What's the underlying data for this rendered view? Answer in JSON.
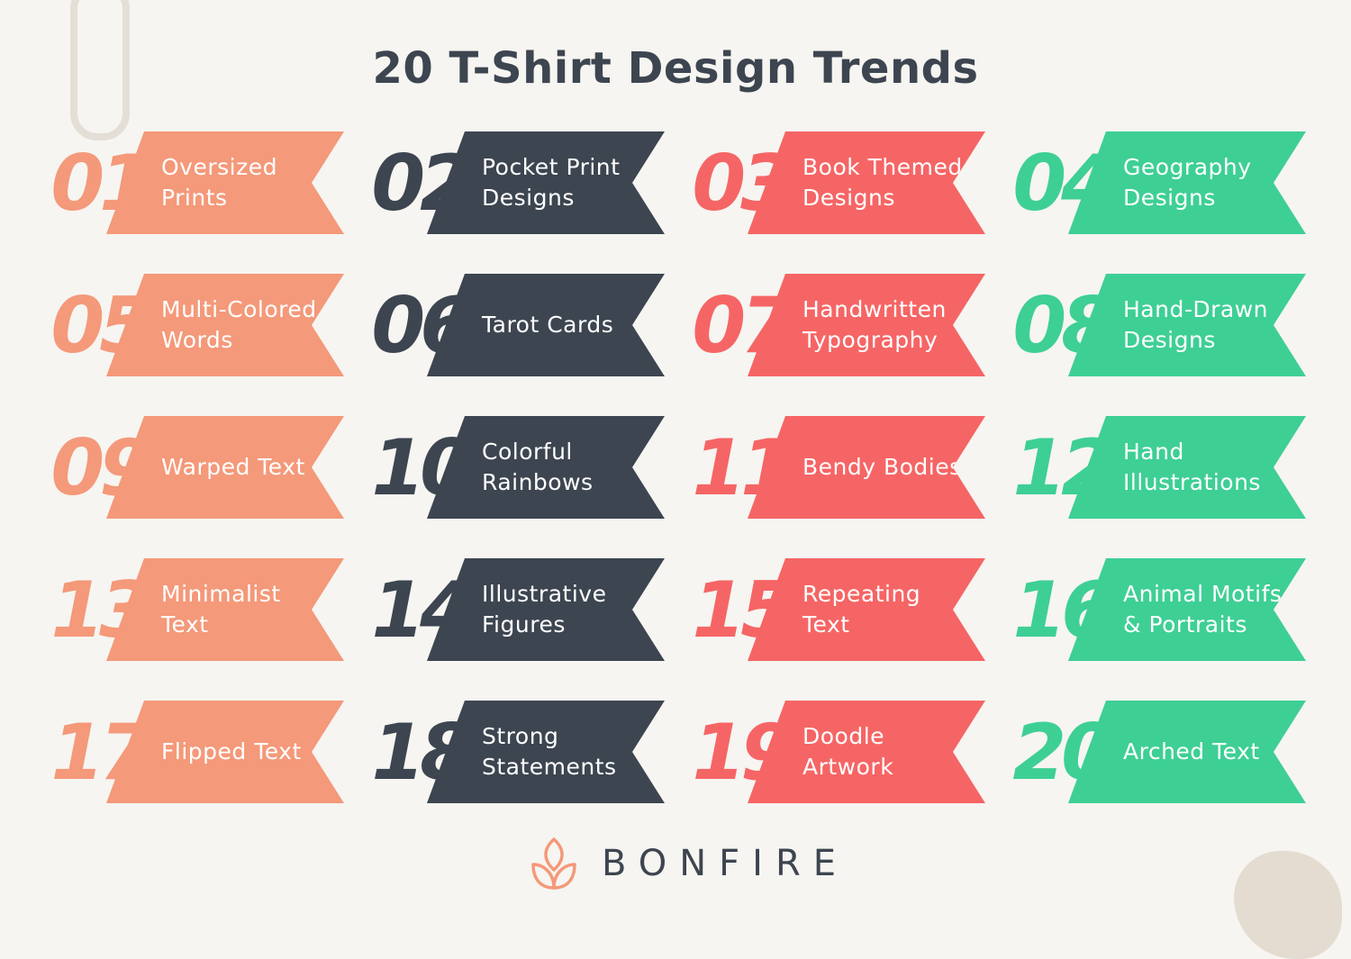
{
  "title": "20 T-Shirt Design Trends",
  "colors": {
    "background": "#F6F5F1",
    "salmon": "#F4997A",
    "dark": "#3D4550",
    "coral": "#F66565",
    "green": "#3ECF95"
  },
  "column_colors": [
    "#F4997A",
    "#3D4550",
    "#F66565",
    "#3ECF95"
  ],
  "trends": [
    {
      "number": "01",
      "label": "Oversized Prints"
    },
    {
      "number": "02",
      "label": "Pocket Print Designs"
    },
    {
      "number": "03",
      "label": "Book Themed Designs"
    },
    {
      "number": "04",
      "label": "Geography Designs"
    },
    {
      "number": "05",
      "label": "Multi-Colored Words"
    },
    {
      "number": "06",
      "label": "Tarot Cards"
    },
    {
      "number": "07",
      "label": "Handwritten Typography"
    },
    {
      "number": "08",
      "label": "Hand-Drawn Designs"
    },
    {
      "number": "09",
      "label": "Warped Text"
    },
    {
      "number": "10",
      "label": "Colorful Rainbows"
    },
    {
      "number": "11",
      "label": "Bendy Bodies"
    },
    {
      "number": "12",
      "label": "Hand Illustrations"
    },
    {
      "number": "13",
      "label": "Minimalist Text"
    },
    {
      "number": "14",
      "label": "Illustrative Figures"
    },
    {
      "number": "15",
      "label": "Repeating Text"
    },
    {
      "number": "16",
      "label": "Animal Motifs & Portraits"
    },
    {
      "number": "17",
      "label": "Flipped Text"
    },
    {
      "number": "18",
      "label": "Strong Statements"
    },
    {
      "number": "19",
      "label": "Doodle Artwork"
    },
    {
      "number": "20",
      "label": "Arched Text"
    }
  ],
  "logo": {
    "text": "BONFIRE",
    "icon": "lotus-flame-icon"
  }
}
